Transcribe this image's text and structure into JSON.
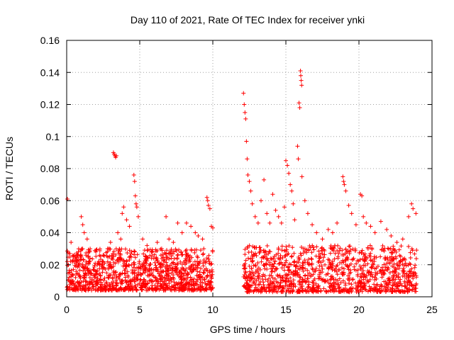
{
  "chart_data": {
    "type": "scatter",
    "title": "Day 110 of 2021, Rate Of TEC Index for receiver ynki",
    "xlabel": "GPS time / hours",
    "ylabel": "ROTI / TECUs",
    "xlim": [
      0,
      25
    ],
    "ylim": [
      0,
      0.16
    ],
    "xticks": [
      0,
      5,
      10,
      15,
      20,
      25
    ],
    "xtick_labels": [
      "0",
      "5",
      "10",
      "15",
      "20",
      "25"
    ],
    "yticks": [
      0,
      0.02,
      0.04,
      0.06,
      0.08,
      0.1,
      0.12,
      0.14,
      0.16
    ],
    "ytick_labels": [
      "0",
      "0.02",
      "0.04",
      "0.06",
      "0.08",
      "0.1",
      "0.12",
      "0.14",
      "0.16"
    ],
    "grid": true,
    "marker": "+",
    "color": "#ff0000",
    "series": [
      {
        "name": "",
        "points": [
          [
            0.05,
            0.061
          ],
          [
            0.2,
            0.027
          ],
          [
            0.3,
            0.034
          ],
          [
            0.5,
            0.022
          ],
          [
            0.8,
            0.028
          ],
          [
            1.0,
            0.05
          ],
          [
            1.1,
            0.045
          ],
          [
            1.2,
            0.04
          ],
          [
            1.4,
            0.036
          ],
          [
            1.6,
            0.024
          ],
          [
            2.0,
            0.028
          ],
          [
            2.2,
            0.022
          ],
          [
            2.5,
            0.026
          ],
          [
            2.8,
            0.03
          ],
          [
            3.0,
            0.034
          ],
          [
            3.2,
            0.09
          ],
          [
            3.25,
            0.089
          ],
          [
            3.3,
            0.088
          ],
          [
            3.35,
            0.087
          ],
          [
            3.4,
            0.088
          ],
          [
            3.5,
            0.04
          ],
          [
            3.7,
            0.036
          ],
          [
            3.8,
            0.052
          ],
          [
            3.9,
            0.056
          ],
          [
            4.1,
            0.048
          ],
          [
            4.3,
            0.044
          ],
          [
            4.6,
            0.076
          ],
          [
            4.65,
            0.072
          ],
          [
            4.7,
            0.063
          ],
          [
            4.75,
            0.058
          ],
          [
            4.8,
            0.056
          ],
          [
            4.9,
            0.05
          ],
          [
            5.2,
            0.036
          ],
          [
            5.5,
            0.032
          ],
          [
            5.8,
            0.028
          ],
          [
            6.2,
            0.034
          ],
          [
            6.5,
            0.03
          ],
          [
            6.8,
            0.05
          ],
          [
            7.0,
            0.036
          ],
          [
            7.3,
            0.034
          ],
          [
            7.6,
            0.046
          ],
          [
            7.9,
            0.04
          ],
          [
            8.2,
            0.046
          ],
          [
            8.5,
            0.044
          ],
          [
            8.8,
            0.04
          ],
          [
            9.0,
            0.038
          ],
          [
            9.3,
            0.036
          ],
          [
            9.6,
            0.062
          ],
          [
            9.65,
            0.06
          ],
          [
            9.7,
            0.057
          ],
          [
            9.8,
            0.055
          ],
          [
            9.9,
            0.044
          ],
          [
            10.0,
            0.043
          ],
          [
            12.1,
            0.127
          ],
          [
            12.15,
            0.12
          ],
          [
            12.2,
            0.115
          ],
          [
            12.25,
            0.111
          ],
          [
            12.3,
            0.097
          ],
          [
            12.35,
            0.086
          ],
          [
            12.4,
            0.076
          ],
          [
            12.5,
            0.072
          ],
          [
            12.6,
            0.066
          ],
          [
            12.7,
            0.058
          ],
          [
            12.9,
            0.05
          ],
          [
            13.1,
            0.046
          ],
          [
            13.3,
            0.06
          ],
          [
            13.5,
            0.073
          ],
          [
            13.7,
            0.052
          ],
          [
            13.9,
            0.046
          ],
          [
            14.1,
            0.064
          ],
          [
            14.3,
            0.054
          ],
          [
            14.5,
            0.05
          ],
          [
            14.7,
            0.046
          ],
          [
            14.9,
            0.056
          ],
          [
            15.0,
            0.085
          ],
          [
            15.1,
            0.082
          ],
          [
            15.2,
            0.077
          ],
          [
            15.3,
            0.07
          ],
          [
            15.4,
            0.066
          ],
          [
            15.5,
            0.058
          ],
          [
            15.6,
            0.048
          ],
          [
            15.8,
            0.094
          ],
          [
            15.85,
            0.086
          ],
          [
            15.9,
            0.121
          ],
          [
            15.95,
            0.118
          ],
          [
            16.0,
            0.141
          ],
          [
            16.02,
            0.138
          ],
          [
            16.05,
            0.135
          ],
          [
            16.08,
            0.132
          ],
          [
            16.1,
            0.075
          ],
          [
            16.3,
            0.06
          ],
          [
            16.5,
            0.052
          ],
          [
            16.8,
            0.045
          ],
          [
            17.1,
            0.04
          ],
          [
            17.5,
            0.036
          ],
          [
            17.9,
            0.042
          ],
          [
            18.2,
            0.04
          ],
          [
            18.5,
            0.046
          ],
          [
            18.9,
            0.075
          ],
          [
            18.95,
            0.072
          ],
          [
            19.0,
            0.07
          ],
          [
            19.1,
            0.066
          ],
          [
            19.3,
            0.057
          ],
          [
            19.5,
            0.052
          ],
          [
            19.8,
            0.045
          ],
          [
            20.1,
            0.064
          ],
          [
            20.2,
            0.063
          ],
          [
            20.3,
            0.05
          ],
          [
            20.5,
            0.046
          ],
          [
            20.8,
            0.044
          ],
          [
            21.1,
            0.04
          ],
          [
            21.5,
            0.047
          ],
          [
            21.9,
            0.042
          ],
          [
            22.2,
            0.038
          ],
          [
            22.6,
            0.034
          ],
          [
            23.0,
            0.036
          ],
          [
            23.4,
            0.05
          ],
          [
            23.6,
            0.058
          ],
          [
            23.7,
            0.055
          ],
          [
            23.9,
            0.052
          ]
        ],
        "band": {
          "description_segments": [
            {
              "x": [
                0.0,
                10.0
              ],
              "y": [
                0.004,
                0.03
              ]
            },
            {
              "x": [
                12.1,
                23.95
              ],
              "y": [
                0.003,
                0.032
              ]
            }
          ],
          "count": 2200
        }
      }
    ]
  }
}
